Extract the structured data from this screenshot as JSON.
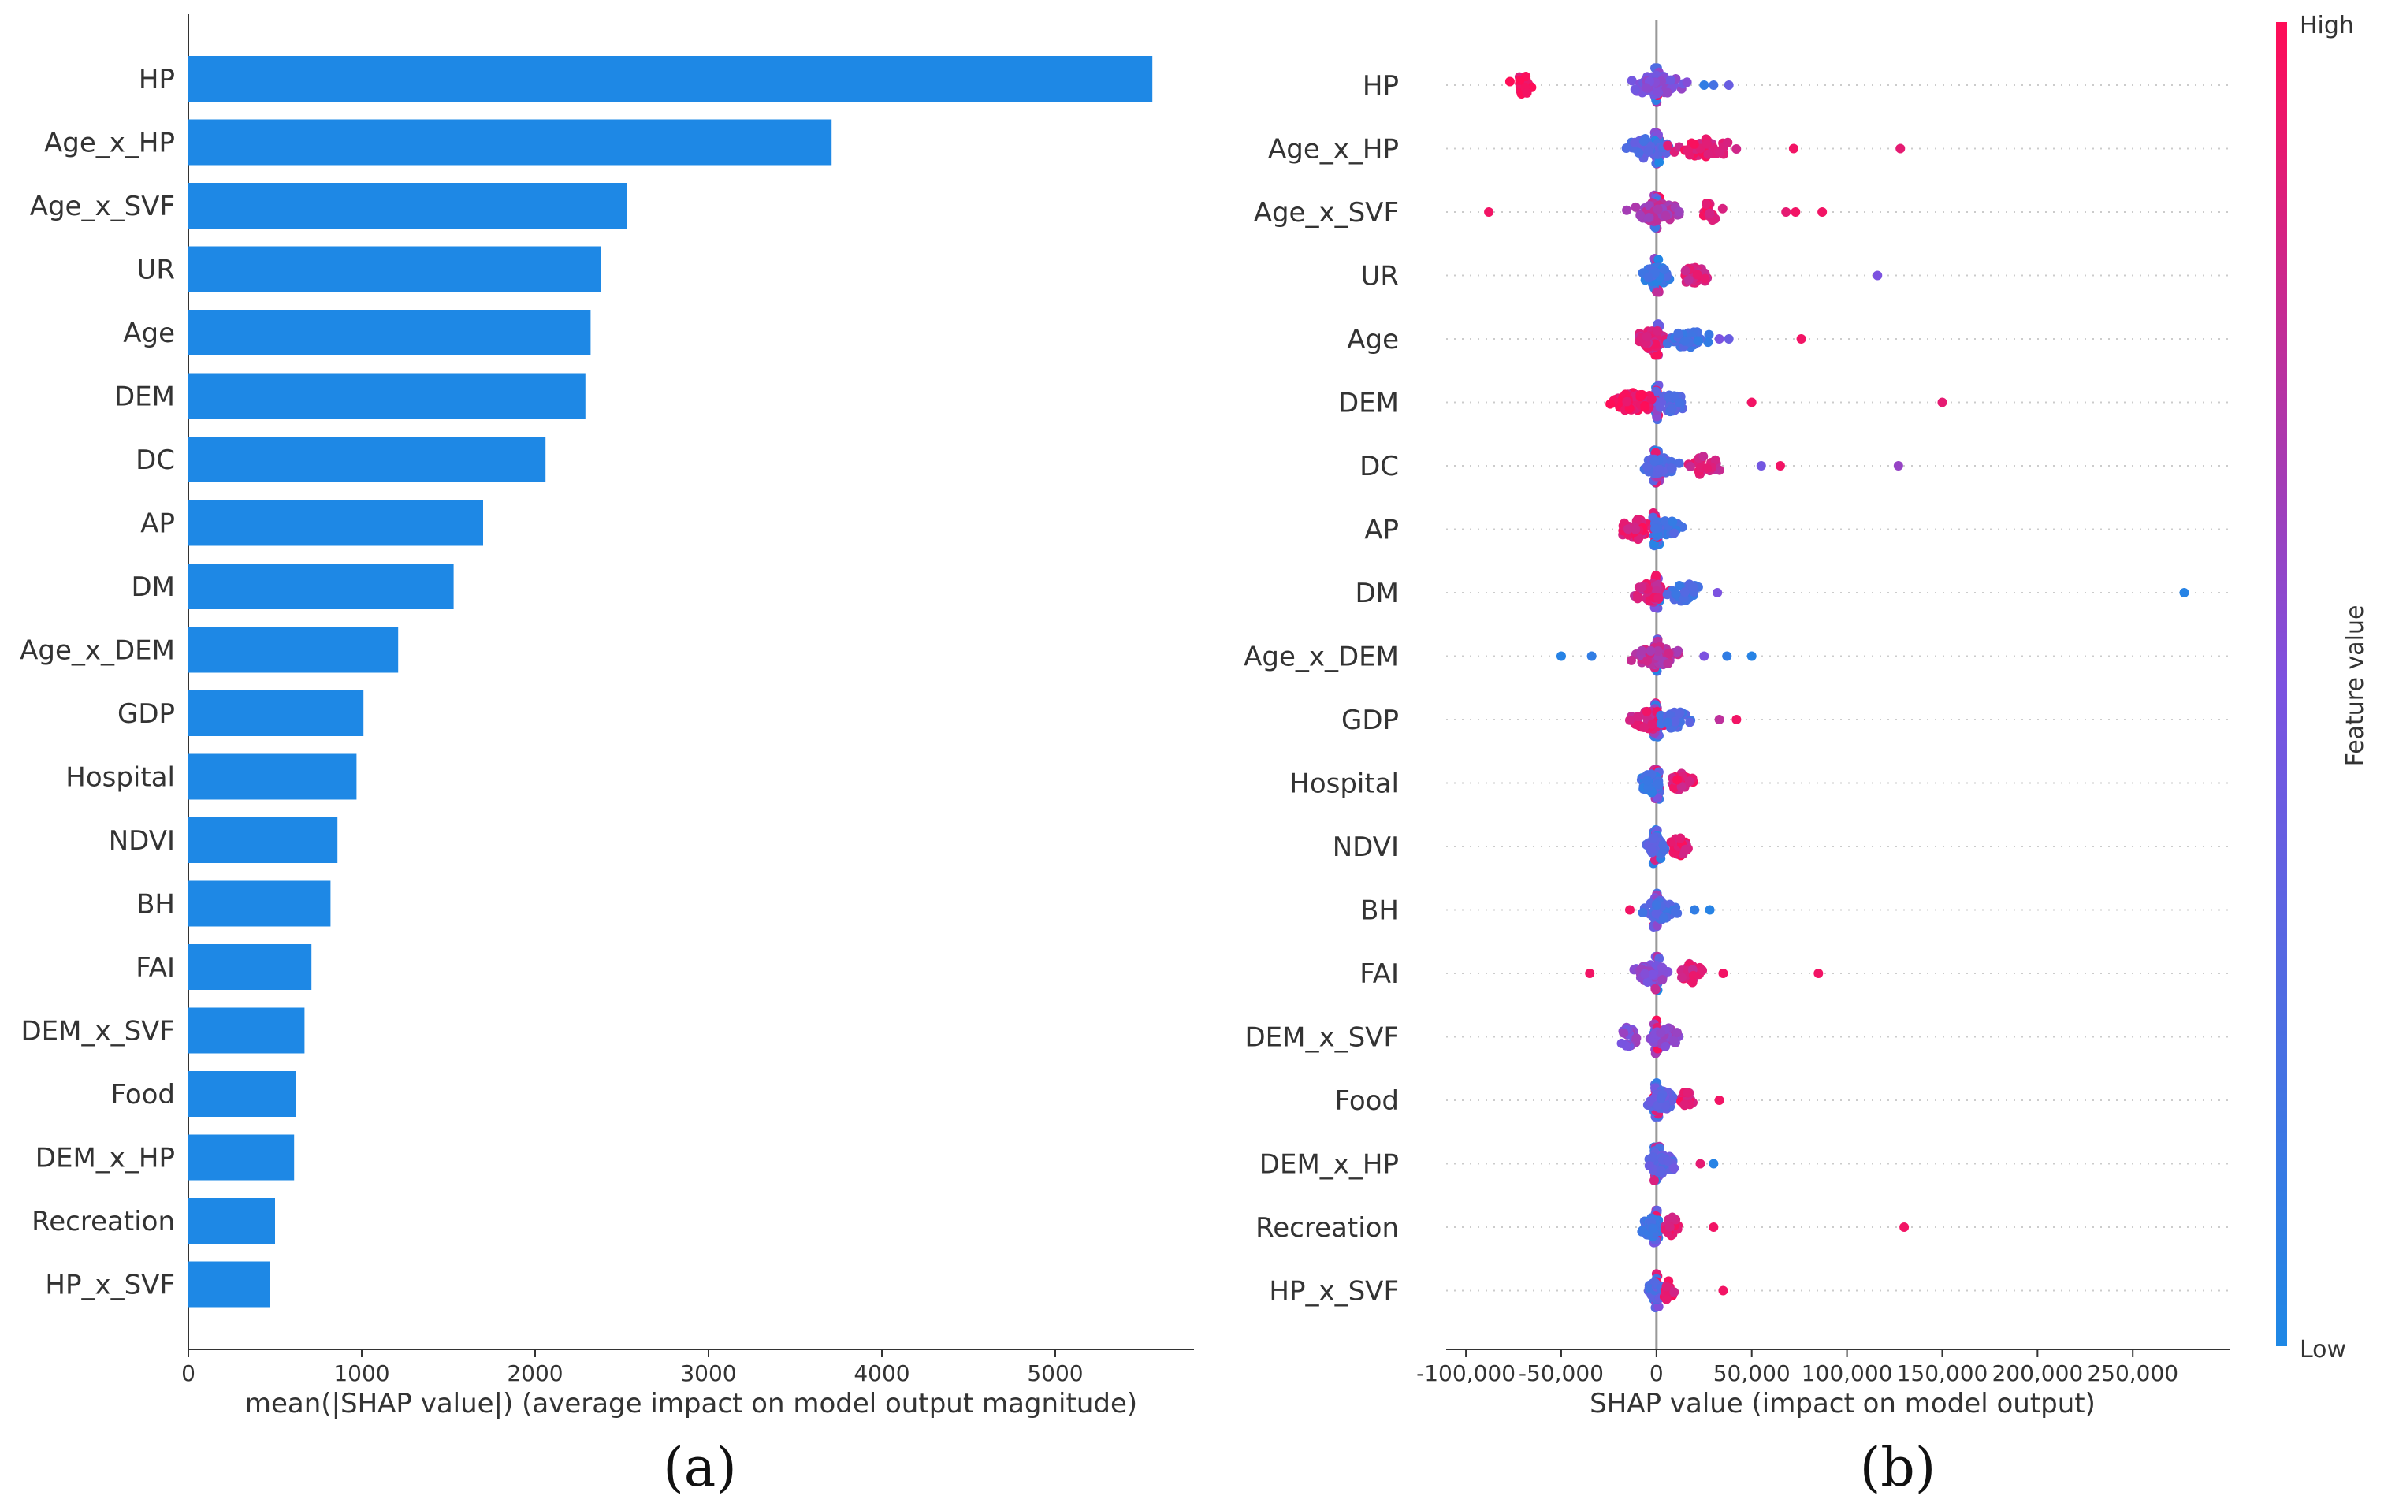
{
  "chart_data": [
    {
      "type": "bar",
      "panel_label": "(a)",
      "orientation": "horizontal",
      "categories": [
        "HP",
        "Age_x_HP",
        "Age_x_SVF",
        "UR",
        "Age",
        "DEM",
        "DC",
        "AP",
        "DM",
        "Age_x_DEM",
        "GDP",
        "Hospital",
        "NDVI",
        "BH",
        "FAI",
        "DEM_x_SVF",
        "Food",
        "DEM_x_HP",
        "Recreation",
        "HP_x_SVF"
      ],
      "values": [
        5560,
        3710,
        2530,
        2380,
        2320,
        2290,
        2060,
        1700,
        1530,
        1210,
        1010,
        970,
        860,
        820,
        710,
        670,
        620,
        610,
        500,
        470
      ],
      "xlabel": "mean(|SHAP value|) (average impact on model output magnitude)",
      "xlim": [
        0,
        5800
      ],
      "xticks": [
        0,
        1000,
        2000,
        3000,
        4000,
        5000
      ],
      "xtick_labels": [
        "0",
        "1000",
        "2000",
        "3000",
        "4000",
        "5000"
      ],
      "bar_color": "#1E88E5"
    },
    {
      "type": "scatter",
      "panel_label": "(b)",
      "subtype": "beeswarm",
      "categories": [
        "HP",
        "Age_x_HP",
        "Age_x_SVF",
        "UR",
        "Age",
        "DEM",
        "DC",
        "AP",
        "DM",
        "Age_x_DEM",
        "GDP",
        "Hospital",
        "NDVI",
        "BH",
        "FAI",
        "DEM_x_SVF",
        "Food",
        "DEM_x_HP",
        "Recreation",
        "HP_x_SVF"
      ],
      "xlabel": "SHAP value (impact on model output)",
      "xlim": [
        -105000,
        295000
      ],
      "xticks": [
        -100000,
        -50000,
        0,
        50000,
        100000,
        150000,
        200000,
        250000
      ],
      "xtick_labels": [
        "-100,000",
        "-50,000",
        "0",
        "50,000",
        "100,000",
        "150,000",
        "200,000",
        "250,000"
      ],
      "colorbar": {
        "title": "Feature value",
        "high_label": "High",
        "low_label": "Low",
        "high_color": "#FF0D57",
        "mid_color": "#7C52E0",
        "low_color": "#1E88E5"
      },
      "series": [
        {
          "feature": "HP",
          "clusters": [
            {
              "center": -70000,
              "spread": 9000,
              "n": 20,
              "color_value": 0.95
            },
            {
              "center": 0,
              "spread": 20000,
              "n": 70,
              "color_value": 0.5
            }
          ],
          "outliers": [
            {
              "x": 30000,
              "c": 0.2
            },
            {
              "x": 38000,
              "c": 0.4
            },
            {
              "x": 25000,
              "c": 0.1
            }
          ]
        },
        {
          "feature": "Age_x_HP",
          "clusters": [
            {
              "center": -5000,
              "spread": 15000,
              "n": 40,
              "color_value": 0.3
            },
            {
              "center": 25000,
              "spread": 22000,
              "n": 50,
              "color_value": 0.9
            }
          ],
          "outliers": [
            {
              "x": 72000,
              "c": 0.95
            },
            {
              "x": 128000,
              "c": 0.9
            }
          ]
        },
        {
          "feature": "Age_x_SVF",
          "clusters": [
            {
              "center": 0,
              "spread": 18000,
              "n": 60,
              "color_value": 0.7
            },
            {
              "center": 28000,
              "spread": 8000,
              "n": 15,
              "color_value": 0.9
            }
          ],
          "outliers": [
            {
              "x": -88000,
              "c": 0.95
            },
            {
              "x": 68000,
              "c": 0.9
            },
            {
              "x": 73000,
              "c": 0.95
            },
            {
              "x": 87000,
              "c": 0.95
            }
          ]
        },
        {
          "feature": "UR",
          "clusters": [
            {
              "center": 0,
              "spread": 10000,
              "n": 45,
              "color_value": 0.15
            },
            {
              "center": 20000,
              "spread": 10000,
              "n": 35,
              "color_value": 0.85
            }
          ],
          "outliers": [
            {
              "x": 116000,
              "c": 0.5
            }
          ]
        },
        {
          "feature": "Age",
          "clusters": [
            {
              "center": -3000,
              "spread": 12000,
              "n": 50,
              "color_value": 0.85
            },
            {
              "center": 15000,
              "spread": 15000,
              "n": 30,
              "color_value": 0.2
            }
          ],
          "outliers": [
            {
              "x": 33000,
              "c": 0.5
            },
            {
              "x": 38000,
              "c": 0.4
            },
            {
              "x": 76000,
              "c": 0.95
            }
          ]
        },
        {
          "feature": "DEM",
          "clusters": [
            {
              "center": -12000,
              "spread": 18000,
              "n": 60,
              "color_value": 0.95
            },
            {
              "center": 8000,
              "spread": 10000,
              "n": 30,
              "color_value": 0.3
            }
          ],
          "outliers": [
            {
              "x": 50000,
              "c": 0.95
            },
            {
              "x": 150000,
              "c": 0.9
            }
          ]
        },
        {
          "feature": "DC",
          "clusters": [
            {
              "center": 2000,
              "spread": 12000,
              "n": 60,
              "color_value": 0.3
            },
            {
              "center": 25000,
              "spread": 10000,
              "n": 20,
              "color_value": 0.85
            }
          ],
          "outliers": [
            {
              "x": 55000,
              "c": 0.45
            },
            {
              "x": 65000,
              "c": 0.95
            },
            {
              "x": 127000,
              "c": 0.6
            }
          ]
        },
        {
          "feature": "AP",
          "clusters": [
            {
              "center": -10000,
              "spread": 12000,
              "n": 40,
              "color_value": 0.9
            },
            {
              "center": 5000,
              "spread": 12000,
              "n": 40,
              "color_value": 0.2
            }
          ],
          "outliers": []
        },
        {
          "feature": "DM",
          "clusters": [
            {
              "center": -3000,
              "spread": 12000,
              "n": 50,
              "color_value": 0.85
            },
            {
              "center": 15000,
              "spread": 12000,
              "n": 30,
              "color_value": 0.2
            }
          ],
          "outliers": [
            {
              "x": 32000,
              "c": 0.5
            },
            {
              "x": 277000,
              "c": 0.05
            }
          ]
        },
        {
          "feature": "Age_x_DEM",
          "clusters": [
            {
              "center": 0,
              "spread": 18000,
              "n": 60,
              "color_value": 0.75
            }
          ],
          "outliers": [
            {
              "x": -50000,
              "c": 0.05
            },
            {
              "x": -34000,
              "c": 0.1
            },
            {
              "x": 25000,
              "c": 0.5
            },
            {
              "x": 37000,
              "c": 0.1
            },
            {
              "x": 50000,
              "c": 0.05
            }
          ]
        },
        {
          "feature": "GDP",
          "clusters": [
            {
              "center": -3000,
              "spread": 14000,
              "n": 50,
              "color_value": 0.85
            },
            {
              "center": 10000,
              "spread": 10000,
              "n": 30,
              "color_value": 0.25
            }
          ],
          "outliers": [
            {
              "x": 33000,
              "c": 0.75
            },
            {
              "x": 42000,
              "c": 0.95
            }
          ]
        },
        {
          "feature": "Hospital",
          "clusters": [
            {
              "center": -3000,
              "spread": 8000,
              "n": 35,
              "color_value": 0.15
            },
            {
              "center": 13000,
              "spread": 8000,
              "n": 30,
              "color_value": 0.9
            }
          ],
          "outliers": []
        },
        {
          "feature": "NDVI",
          "clusters": [
            {
              "center": 0,
              "spread": 8000,
              "n": 40,
              "color_value": 0.3
            },
            {
              "center": 12000,
              "spread": 8000,
              "n": 30,
              "color_value": 0.9
            }
          ],
          "outliers": []
        },
        {
          "feature": "BH",
          "clusters": [
            {
              "center": 2000,
              "spread": 10000,
              "n": 60,
              "color_value": 0.25
            }
          ],
          "outliers": [
            {
              "x": -14000,
              "c": 0.95
            },
            {
              "x": 20000,
              "c": 0.1
            },
            {
              "x": 28000,
              "c": 0.05
            }
          ]
        },
        {
          "feature": "FAI",
          "clusters": [
            {
              "center": -3000,
              "spread": 12000,
              "n": 50,
              "color_value": 0.55
            },
            {
              "center": 18000,
              "spread": 8000,
              "n": 25,
              "color_value": 0.85
            }
          ],
          "outliers": [
            {
              "x": -35000,
              "c": 0.95
            },
            {
              "x": 35000,
              "c": 0.95
            },
            {
              "x": 85000,
              "c": 0.95
            }
          ]
        },
        {
          "feature": "DEM_x_SVF",
          "clusters": [
            {
              "center": -15000,
              "spread": 7000,
              "n": 25,
              "color_value": 0.55
            },
            {
              "center": 5000,
              "spread": 10000,
              "n": 50,
              "color_value": 0.6
            }
          ],
          "outliers": []
        },
        {
          "feature": "Food",
          "clusters": [
            {
              "center": 3000,
              "spread": 10000,
              "n": 60,
              "color_value": 0.35
            },
            {
              "center": 15000,
              "spread": 6000,
              "n": 15,
              "color_value": 0.9
            }
          ],
          "outliers": [
            {
              "x": 33000,
              "c": 0.95
            }
          ]
        },
        {
          "feature": "DEM_x_HP",
          "clusters": [
            {
              "center": 3000,
              "spread": 10000,
              "n": 60,
              "color_value": 0.35
            }
          ],
          "outliers": [
            {
              "x": 23000,
              "c": 0.9
            },
            {
              "x": 30000,
              "c": 0.05
            }
          ]
        },
        {
          "feature": "Recreation",
          "clusters": [
            {
              "center": -3000,
              "spread": 8000,
              "n": 40,
              "color_value": 0.15
            },
            {
              "center": 8000,
              "spread": 6000,
              "n": 25,
              "color_value": 0.9
            }
          ],
          "outliers": [
            {
              "x": 30000,
              "c": 0.95
            },
            {
              "x": 130000,
              "c": 0.95
            }
          ]
        },
        {
          "feature": "HP_x_SVF",
          "clusters": [
            {
              "center": 0,
              "spread": 6000,
              "n": 35,
              "color_value": 0.3
            },
            {
              "center": 6000,
              "spread": 4000,
              "n": 15,
              "color_value": 0.9
            }
          ],
          "outliers": [
            {
              "x": 35000,
              "c": 0.95
            }
          ]
        }
      ]
    }
  ]
}
